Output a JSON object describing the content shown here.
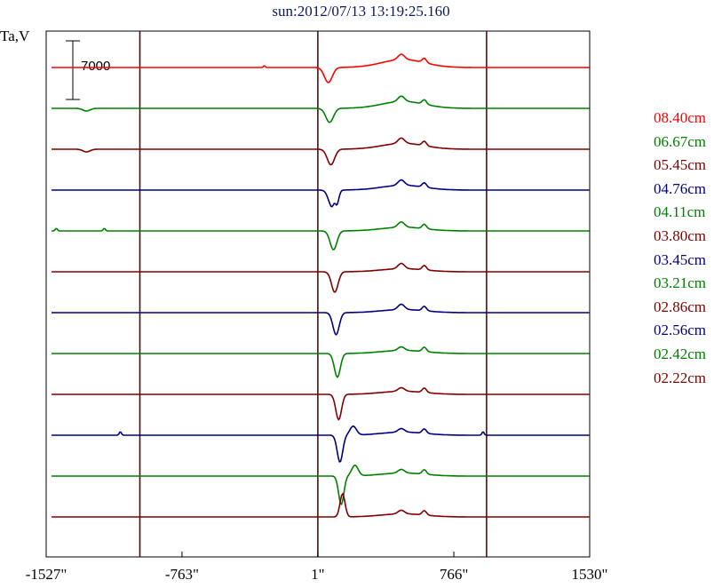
{
  "chart_data": {
    "type": "line",
    "title": "sun:2012/07/13 13:19:25.160",
    "ylabel": "Ta,V",
    "scale_bar_label": "7000",
    "x_ticks": [
      "-1527\"",
      "-763\"",
      "1\"",
      "766\"",
      "1530\""
    ],
    "x_tick_values": [
      -1527,
      -763,
      1,
      766,
      1530
    ],
    "xlim": [
      -1527,
      1530
    ],
    "vertical_lines": [
      -1000,
      1,
      950
    ],
    "series": [
      {
        "name": "08.40cm",
        "color": "#ff0000"
      },
      {
        "name": "06.67cm",
        "color": "#008000"
      },
      {
        "name": "05.45cm",
        "color": "#800000"
      },
      {
        "name": "04.76cm",
        "color": "#000080"
      },
      {
        "name": "04.11cm",
        "color": "#008000"
      },
      {
        "name": "03.80cm",
        "color": "#800000"
      },
      {
        "name": "03.45cm",
        "color": "#000080"
      },
      {
        "name": "03.21cm",
        "color": "#008000"
      },
      {
        "name": "02.86cm",
        "color": "#800000"
      },
      {
        "name": "02.56cm",
        "color": "#000080"
      },
      {
        "name": "02.42cm",
        "color": "#008000"
      },
      {
        "name": "02.22cm",
        "color": "#800000"
      }
    ]
  }
}
